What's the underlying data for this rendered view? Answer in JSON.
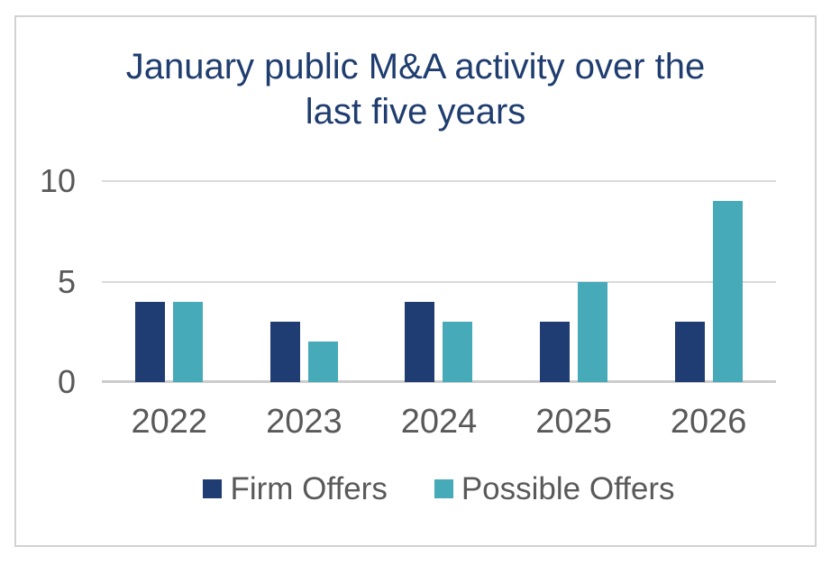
{
  "header": {
    "title_lines": [
      "January public M&A activity over the",
      "last five years"
    ]
  },
  "colors": {
    "title_text": "#1f3d6f",
    "axis_text": "#595959",
    "legend_text": "#595959",
    "gridline": "#d9d9d9",
    "axis_line": "#cccccc",
    "frame_border": "#d2d2d2",
    "background": "#ffffff",
    "firm_offers": "#1f3d72",
    "possible_offers": "#46aab9"
  },
  "chart_data": {
    "type": "bar",
    "title": "January public M&A activity over the last five years",
    "categories": [
      "2022",
      "2023",
      "2024",
      "2025",
      "2026"
    ],
    "series": [
      {
        "name": "Firm Offers",
        "color": "#1f3d72",
        "values": [
          4,
          3,
          4,
          3,
          3
        ]
      },
      {
        "name": "Possible Offers",
        "color": "#46aab9",
        "values": [
          4,
          2,
          3,
          5,
          9
        ]
      }
    ],
    "xlabel": "",
    "ylabel": "",
    "ylim": [
      0,
      10
    ],
    "yticks": [
      0,
      5,
      10
    ],
    "grid": true,
    "legend_position": "bottom"
  }
}
